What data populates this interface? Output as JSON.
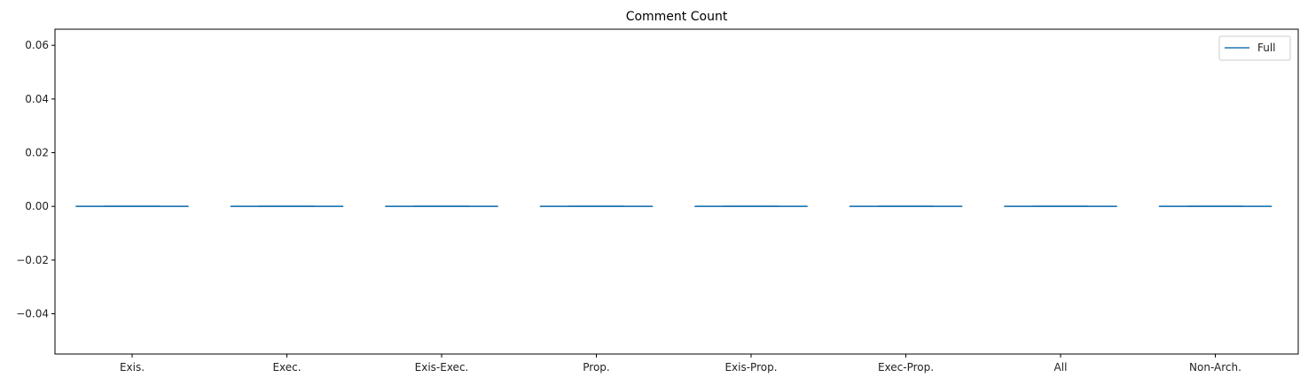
{
  "chart_data": {
    "type": "box",
    "title": "Comment Count",
    "xlabel": "",
    "ylabel": "",
    "categories": [
      "Exis.",
      "Exec.",
      "Exis-Exec.",
      "Prop.",
      "Exis-Prop.",
      "Exec-Prop.",
      "All",
      "Non-Arch."
    ],
    "ylim": [
      -0.055,
      0.066
    ],
    "yticks": [
      -0.04,
      -0.02,
      0.0,
      0.02,
      0.04,
      0.06
    ],
    "ytick_labels": [
      "−0.04",
      "−0.02",
      "0.00",
      "0.02",
      "0.04",
      "0.06"
    ],
    "grid": false,
    "legend": {
      "position": "top-right",
      "entries": [
        "Full"
      ]
    },
    "series": [
      {
        "name": "Full",
        "color": "#1f77b4",
        "boxes": [
          {
            "min": 0,
            "q1": 0,
            "median": 0,
            "q3": 0,
            "max": 0
          },
          {
            "min": 0,
            "q1": 0,
            "median": 0,
            "q3": 0,
            "max": 0
          },
          {
            "min": 0,
            "q1": 0,
            "median": 0,
            "q3": 0,
            "max": 0
          },
          {
            "min": 0,
            "q1": 0,
            "median": 0,
            "q3": 0,
            "max": 0
          },
          {
            "min": 0,
            "q1": 0,
            "median": 0,
            "q3": 0,
            "max": 0
          },
          {
            "min": 0,
            "q1": 0,
            "median": 0,
            "q3": 0,
            "max": 0
          },
          {
            "min": 0,
            "q1": 0,
            "median": 0,
            "q3": 0,
            "max": 0
          },
          {
            "min": 0,
            "q1": 0,
            "median": 0,
            "q3": 0,
            "max": 0
          }
        ]
      }
    ]
  }
}
